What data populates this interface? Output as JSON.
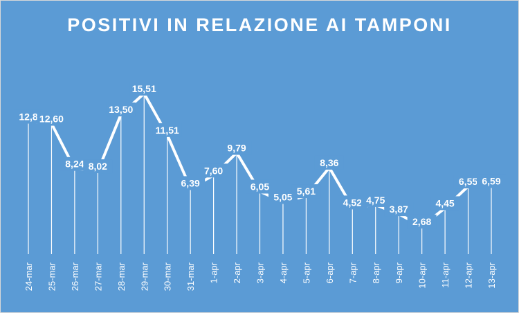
{
  "chart_data": {
    "type": "line",
    "title": "POSITIVI IN RELAZIONE AI TAMPONI",
    "xlabel": "",
    "ylabel": "",
    "ylim": [
      0,
      17
    ],
    "grid": false,
    "legend": "none",
    "categories": [
      "24-mar",
      "25-mar",
      "26-mar",
      "27-mar",
      "28-mar",
      "29-mar",
      "30-mar",
      "31-mar",
      "1-apr",
      "2-apr",
      "3-apr",
      "4-apr",
      "5-apr",
      "6-apr",
      "7-apr",
      "8-apr",
      "9-apr",
      "10-apr",
      "11-apr",
      "12-apr",
      "13-apr"
    ],
    "series": [
      {
        "values": [
          12.8,
          12.6,
          8.24,
          8.02,
          13.5,
          15.51,
          11.51,
          6.39,
          7.6,
          9.79,
          6.05,
          5.05,
          5.61,
          8.36,
          4.52,
          4.75,
          3.87,
          2.68,
          4.45,
          6.55,
          6.59
        ],
        "labels": [
          "12,8",
          "12,60",
          "8,24",
          "8,02",
          "13,50",
          "15,51",
          "11,51",
          "6,39",
          "7,60",
          "9,79",
          "6,05",
          "5,05",
          "5,61",
          "8,36",
          "4,52",
          "4,75",
          "3,87",
          "2,68",
          "4,45",
          "6,55",
          "6,59"
        ]
      }
    ],
    "colors": {
      "background": "#5b9bd5",
      "line": "#ffffff",
      "text": "#ffffff"
    }
  }
}
